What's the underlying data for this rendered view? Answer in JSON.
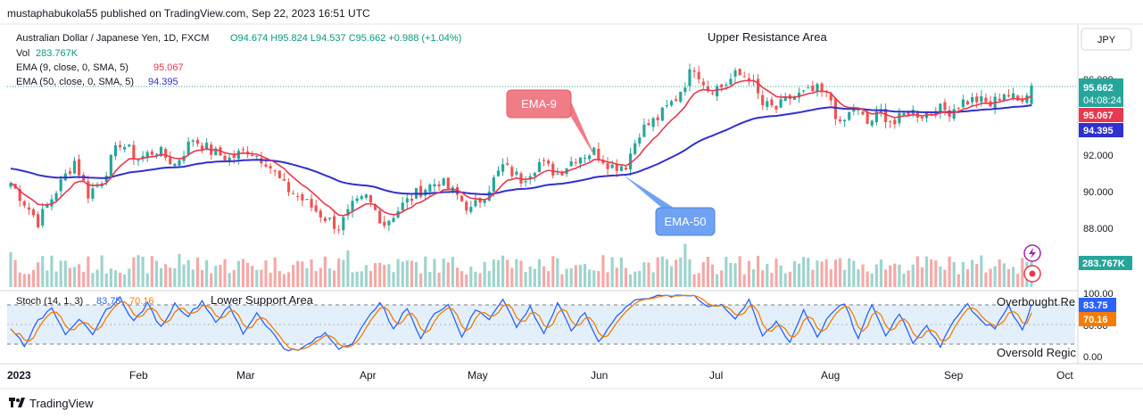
{
  "header": {
    "publisher": "mustaphabukola55 published on TradingView.com, Sep 22, 2023 16:51 UTC"
  },
  "legend": {
    "symbol": "Australian Dollar / Japanese Yen, 1D, FXCM",
    "ohlc": "O94.674  H95.824  L94.537  C95.662  +0.988 (+1.04%)",
    "vol_label": "Vol",
    "vol_value": "283.767K",
    "ema9_label": "EMA (9, close, 0, SMA, 5)",
    "ema9_value": "95.067",
    "ema50_label": "EMA (50, close, 0, SMA, 5)",
    "ema50_value": "94.395"
  },
  "currency": "JPY",
  "annotations": {
    "upper": "Upper Resistance Area",
    "lower": "Lower Support Area",
    "ema9_callout": "EMA-9",
    "ema50_callout": "EMA-50",
    "overbought": "Overbought Re",
    "oversold": "Oversold Regic"
  },
  "price_axis": {
    "ticks": [
      "96.000",
      "92.000",
      "90.000",
      "88.000"
    ],
    "last_price": "95.662",
    "countdown": "04:08:24",
    "ema9_tag": "95.067",
    "ema50_tag": "94.395",
    "volume_tag": "283.767K"
  },
  "stoch": {
    "label": "Stoch (14, 1, 3)",
    "k_value": "83.75",
    "d_value": "70.16",
    "ticks": [
      "100.00",
      "80.00",
      "0.00"
    ],
    "k_tag": "83.75",
    "d_tag": "70.16"
  },
  "time_axis": [
    "2023",
    "Feb",
    "Mar",
    "Apr",
    "May",
    "Jun",
    "Jul",
    "Aug",
    "Sep",
    "Oct"
  ],
  "footer": {
    "brand": "TradingView"
  },
  "colors": {
    "up": "#26a69a",
    "down": "#ef5350",
    "ema9": "#e8384f",
    "ema50": "#3030d0",
    "stoch_k": "#2962ff",
    "stoch_d": "#f57c00",
    "stoch_band": "#e3f0fb"
  },
  "chart_data": {
    "type": "candlestick",
    "ylim": [
      87.0,
      97.0
    ],
    "stoch_ylim": [
      0,
      100
    ],
    "overbought_level": 80,
    "oversold_level": 20,
    "close_anchors": [
      [
        0,
        90.4
      ],
      [
        6,
        88.3
      ],
      [
        10,
        90.0
      ],
      [
        14,
        91.6
      ],
      [
        17,
        89.8
      ],
      [
        20,
        90.6
      ],
      [
        24,
        92.6
      ],
      [
        28,
        91.7
      ],
      [
        32,
        92.2
      ],
      [
        36,
        91.4
      ],
      [
        40,
        92.8
      ],
      [
        44,
        92.1
      ],
      [
        48,
        91.7
      ],
      [
        52,
        92.2
      ],
      [
        56,
        91.6
      ],
      [
        60,
        90.2
      ],
      [
        64,
        89.5
      ],
      [
        68,
        88.7
      ],
      [
        72,
        88.0
      ],
      [
        75,
        89.1
      ],
      [
        78,
        89.6
      ],
      [
        82,
        88.2
      ],
      [
        86,
        89.2
      ],
      [
        90,
        90.0
      ],
      [
        94,
        90.5
      ],
      [
        98,
        89.7
      ],
      [
        101,
        88.9
      ],
      [
        104,
        89.8
      ],
      [
        108,
        91.3
      ],
      [
        112,
        90.6
      ],
      [
        116,
        91.5
      ],
      [
        120,
        90.9
      ],
      [
        124,
        91.8
      ],
      [
        128,
        92.1
      ],
      [
        132,
        91.3
      ],
      [
        135,
        91.4
      ],
      [
        138,
        93.2
      ],
      [
        142,
        93.9
      ],
      [
        146,
        95.0
      ],
      [
        150,
        96.7
      ],
      [
        153,
        95.5
      ],
      [
        156,
        95.6
      ],
      [
        159,
        96.2
      ],
      [
        162,
        96.2
      ],
      [
        165,
        94.6
      ],
      [
        168,
        94.4
      ],
      [
        171,
        95.0
      ],
      [
        174,
        95.2
      ],
      [
        177,
        95.4
      ],
      [
        180,
        94.9
      ],
      [
        182,
        93.4
      ],
      [
        185,
        94.5
      ],
      [
        188,
        93.6
      ],
      [
        191,
        94.2
      ],
      [
        194,
        93.6
      ],
      [
        197,
        94.3
      ],
      [
        200,
        94.1
      ],
      [
        203,
        94.4
      ],
      [
        206,
        94.3
      ],
      [
        209,
        94.8
      ],
      [
        212,
        94.9
      ],
      [
        215,
        94.6
      ],
      [
        218,
        95.3
      ],
      [
        221,
        94.8
      ],
      [
        224,
        95.662
      ]
    ],
    "stoch_k_anchors": [
      [
        0,
        45
      ],
      [
        3,
        15
      ],
      [
        6,
        55
      ],
      [
        9,
        80
      ],
      [
        12,
        35
      ],
      [
        15,
        60
      ],
      [
        18,
        30
      ],
      [
        21,
        75
      ],
      [
        24,
        95
      ],
      [
        27,
        55
      ],
      [
        30,
        85
      ],
      [
        33,
        45
      ],
      [
        36,
        85
      ],
      [
        39,
        65
      ],
      [
        42,
        90
      ],
      [
        45,
        55
      ],
      [
        48,
        80
      ],
      [
        51,
        35
      ],
      [
        54,
        70
      ],
      [
        57,
        40
      ],
      [
        60,
        10
      ],
      [
        63,
        5
      ],
      [
        66,
        20
      ],
      [
        69,
        35
      ],
      [
        72,
        10
      ],
      [
        75,
        20
      ],
      [
        78,
        55
      ],
      [
        81,
        90
      ],
      [
        84,
        40
      ],
      [
        87,
        80
      ],
      [
        90,
        25
      ],
      [
        93,
        70
      ],
      [
        96,
        85
      ],
      [
        99,
        30
      ],
      [
        102,
        75
      ],
      [
        105,
        60
      ],
      [
        108,
        95
      ],
      [
        111,
        45
      ],
      [
        114,
        80
      ],
      [
        117,
        35
      ],
      [
        120,
        85
      ],
      [
        123,
        40
      ],
      [
        126,
        70
      ],
      [
        129,
        20
      ],
      [
        132,
        55
      ],
      [
        135,
        80
      ],
      [
        138,
        95
      ],
      [
        141,
        97
      ],
      [
        144,
        98
      ],
      [
        147,
        99
      ],
      [
        150,
        100
      ],
      [
        153,
        80
      ],
      [
        156,
        85
      ],
      [
        159,
        60
      ],
      [
        162,
        90
      ],
      [
        165,
        30
      ],
      [
        168,
        55
      ],
      [
        171,
        20
      ],
      [
        174,
        75
      ],
      [
        177,
        30
      ],
      [
        180,
        70
      ],
      [
        183,
        85
      ],
      [
        186,
        25
      ],
      [
        189,
        85
      ],
      [
        192,
        30
      ],
      [
        195,
        70
      ],
      [
        198,
        20
      ],
      [
        201,
        50
      ],
      [
        204,
        10
      ],
      [
        207,
        60
      ],
      [
        210,
        85
      ],
      [
        213,
        55
      ],
      [
        216,
        45
      ],
      [
        219,
        80
      ],
      [
        222,
        40
      ],
      [
        224,
        83.75
      ]
    ],
    "last": {
      "open": 94.674,
      "high": 95.824,
      "low": 94.537,
      "close": 95.662,
      "change": 0.988,
      "change_pct": 1.04
    },
    "ema9_last": 95.067,
    "ema50_last": 94.395,
    "volume_last": "283.767K",
    "stoch_k_last": 83.75,
    "stoch_d_last": 70.16
  }
}
